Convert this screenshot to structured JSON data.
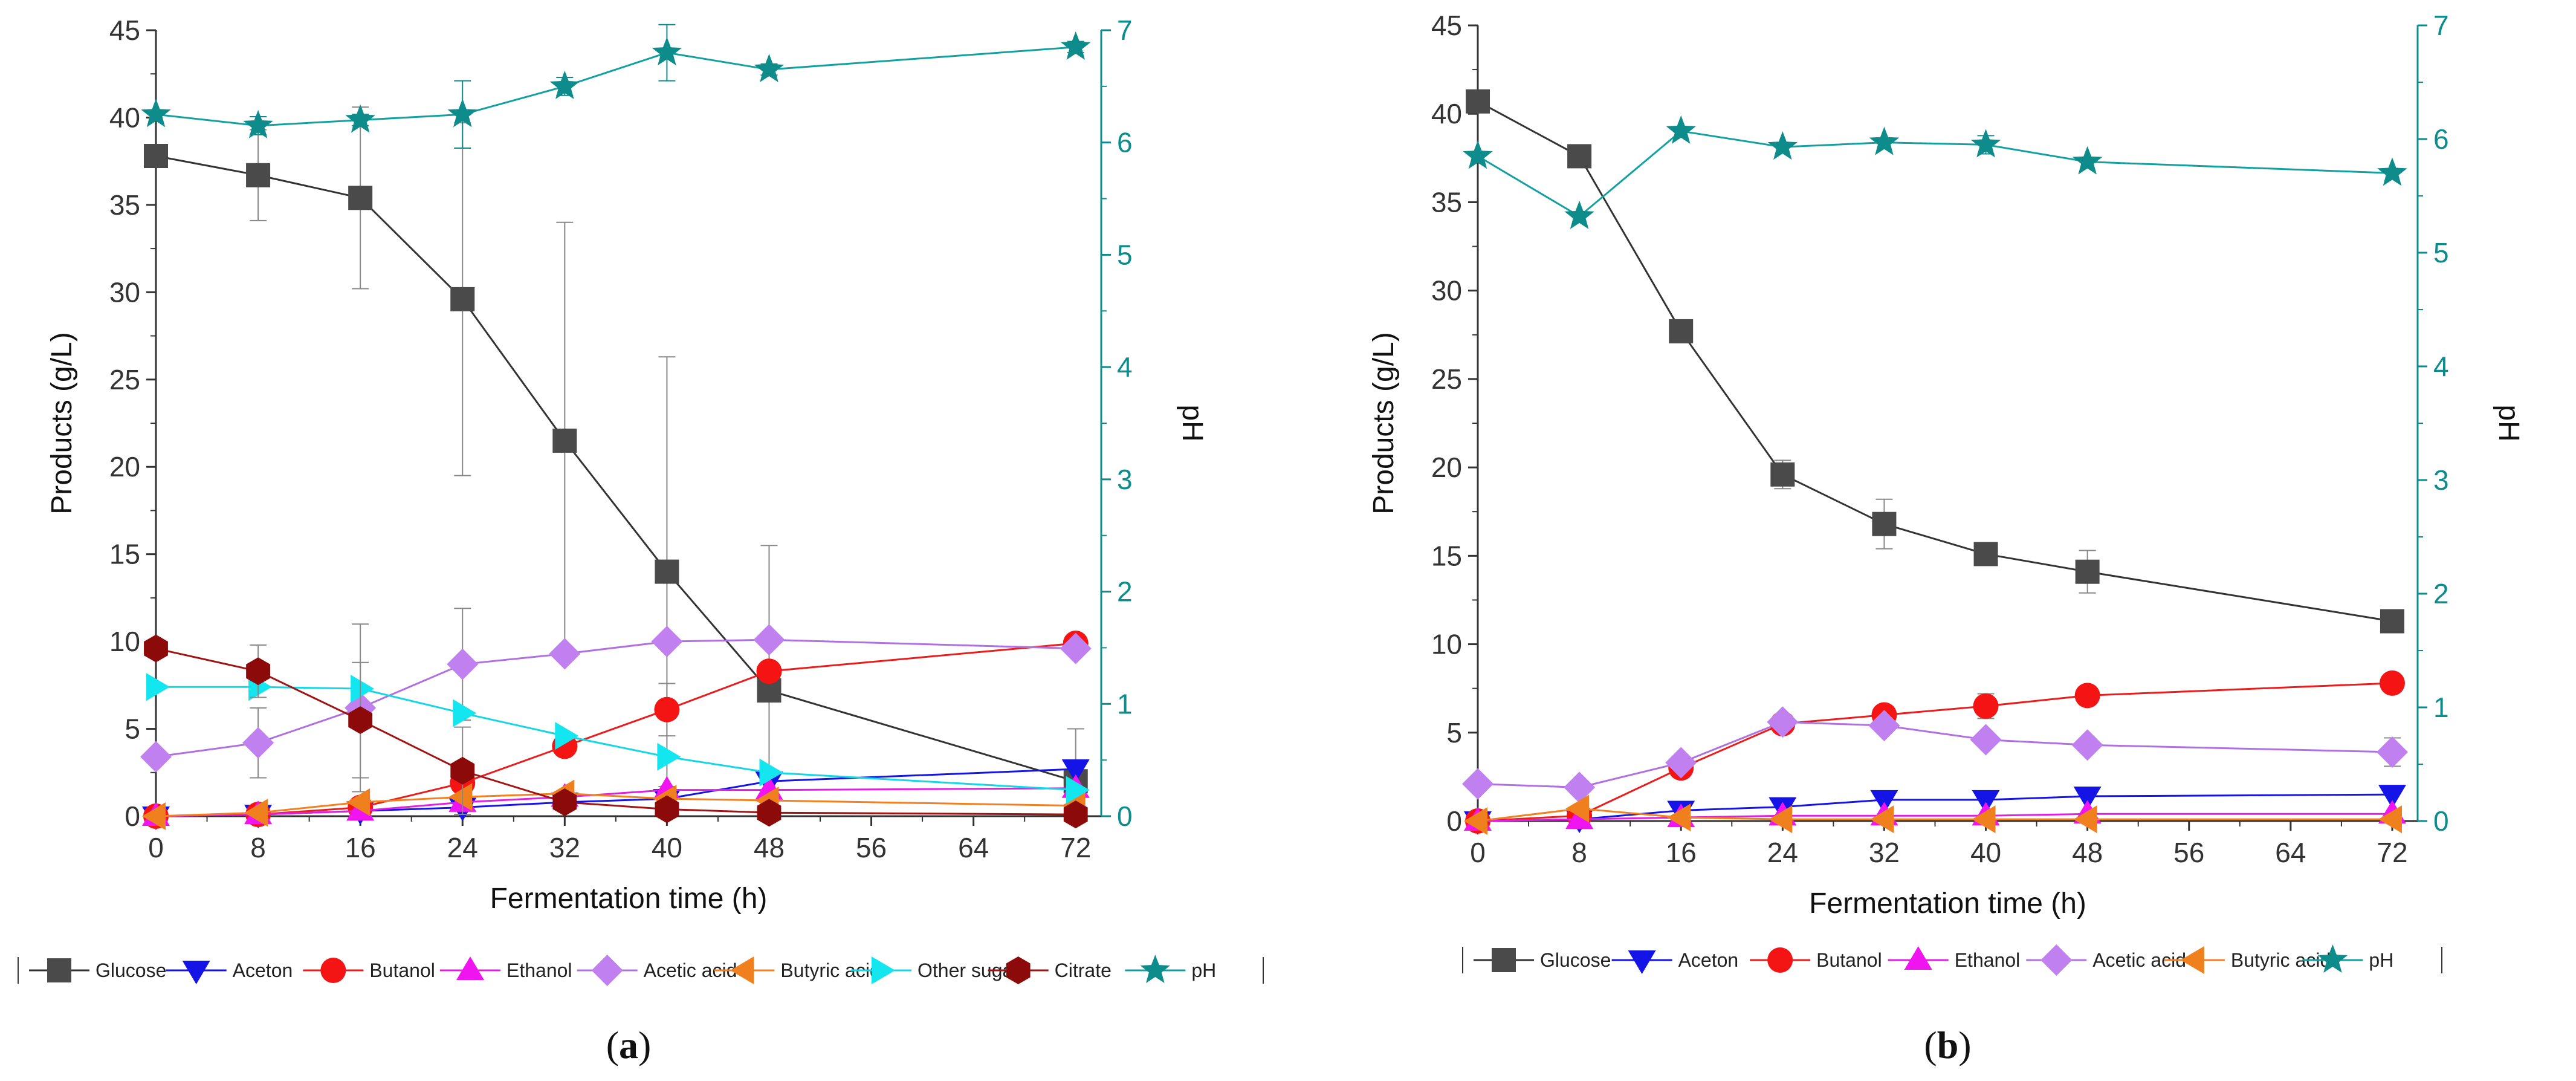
{
  "chart_data": [
    {
      "type": "line",
      "panel_label": "(a)",
      "panel_letter": "a",
      "xlabel": "Fermentation time (h)",
      "ylabel": "Products (g/L)",
      "y2label": "pH",
      "xlim": [
        0,
        74
      ],
      "xticks": [
        0,
        8,
        16,
        24,
        32,
        40,
        48,
        56,
        64,
        72
      ],
      "ylim": [
        0,
        45
      ],
      "yticks": [
        0,
        5,
        10,
        15,
        20,
        25,
        30,
        35,
        40,
        45
      ],
      "y2lim": [
        0,
        7
      ],
      "y2ticks": [
        0,
        1,
        2,
        3,
        4,
        5,
        6,
        7
      ],
      "x": [
        0,
        8,
        16,
        24,
        32,
        40,
        48,
        72
      ],
      "series": [
        {
          "name": "Glucose",
          "marker": "square",
          "color": "#4a4a4a",
          "line_color": "#333333",
          "values": [
            37.8,
            36.7,
            35.4,
            29.6,
            21.5,
            14.0,
            7.2,
            2.0
          ],
          "errors": [
            0,
            2.6,
            5.2,
            10.1,
            12.5,
            12.3,
            8.3,
            3.0
          ]
        },
        {
          "name": "Aceton",
          "marker": "triangle-down",
          "color": "#1414e6",
          "line_color": "#1414e6",
          "values": [
            0.0,
            0.1,
            0.3,
            0.5,
            0.8,
            1.0,
            2.0,
            2.7
          ],
          "errors": [
            0,
            0,
            0,
            0,
            0,
            0,
            0,
            0
          ]
        },
        {
          "name": "Butanol",
          "marker": "circle",
          "color": "#f51414",
          "line_color": "#e81e1e",
          "values": [
            0.0,
            0.1,
            0.5,
            1.9,
            4.0,
            6.1,
            8.3,
            9.9
          ],
          "errors": [
            0,
            0,
            0,
            0,
            0,
            1.5,
            0,
            0
          ]
        },
        {
          "name": "Ethanol",
          "marker": "triangle-up",
          "color": "#f014f0",
          "line_color": "#e020e0",
          "values": [
            0.0,
            0.1,
            0.3,
            0.8,
            1.1,
            1.5,
            1.5,
            1.6
          ],
          "errors": [
            0,
            0,
            0,
            0,
            0,
            0,
            0,
            0
          ]
        },
        {
          "name": "Acetic acid",
          "marker": "diamond",
          "color": "#c080f0",
          "line_color": "#b070e0",
          "values": [
            3.4,
            4.2,
            6.2,
            8.7,
            9.3,
            10.0,
            10.1,
            9.6
          ],
          "errors": [
            0,
            2.0,
            4.8,
            3.2,
            0,
            0,
            0,
            0
          ]
        },
        {
          "name": "Butyric acid",
          "marker": "triangle-left",
          "color": "#f0801e",
          "line_color": "#f08020",
          "values": [
            0.0,
            0.2,
            0.8,
            1.1,
            1.3,
            1.0,
            0.9,
            0.6
          ],
          "errors": [
            0,
            0,
            0,
            0,
            0,
            0,
            0,
            0
          ]
        },
        {
          "name": "Other sugar",
          "marker": "triangle-right",
          "color": "#14e6f0",
          "line_color": "#14d6e6",
          "values": [
            7.4,
            7.4,
            7.3,
            5.9,
            4.6,
            3.4,
            2.5,
            1.5
          ],
          "errors": [
            0,
            0,
            0,
            0,
            0,
            0,
            0,
            0
          ]
        },
        {
          "name": "Citrate",
          "marker": "hexagon",
          "color": "#8c0a0a",
          "line_color": "#a01414",
          "values": [
            9.6,
            8.3,
            5.5,
            2.6,
            0.8,
            0.4,
            0.2,
            0.1
          ],
          "errors": [
            0,
            1.5,
            3.3,
            2.5,
            0,
            0,
            0,
            0
          ]
        },
        {
          "name": "pH",
          "axis": "right",
          "marker": "star",
          "color": "#0e8c8c",
          "line_color": "#14a0a0",
          "values": [
            6.25,
            6.15,
            6.2,
            6.25,
            6.5,
            6.8,
            6.65,
            6.85
          ],
          "errors": [
            0,
            0.08,
            0.05,
            0.3,
            0.08,
            0.25,
            0.05,
            0.05
          ]
        }
      ]
    },
    {
      "type": "line",
      "panel_label": "(b)",
      "panel_letter": "b",
      "xlabel": "Fermentation time (h)",
      "ylabel": "Products (g/L)",
      "y2label": "pH",
      "xlim": [
        0,
        74
      ],
      "xticks": [
        0,
        8,
        16,
        24,
        32,
        40,
        48,
        56,
        64,
        72
      ],
      "ylim": [
        0,
        45
      ],
      "yticks": [
        0,
        5,
        10,
        15,
        20,
        25,
        30,
        35,
        40,
        45
      ],
      "y2lim": [
        0,
        7
      ],
      "y2ticks": [
        0,
        1,
        2,
        3,
        4,
        5,
        6,
        7
      ],
      "x": [
        0,
        8,
        16,
        24,
        32,
        40,
        48,
        72
      ],
      "series": [
        {
          "name": "Glucose",
          "marker": "square",
          "color": "#4a4a4a",
          "line_color": "#333333",
          "values": [
            40.7,
            37.6,
            27.7,
            19.6,
            16.8,
            15.1,
            14.1,
            11.3
          ],
          "errors": [
            0,
            0,
            0,
            0.8,
            1.4,
            0,
            1.2,
            0
          ]
        },
        {
          "name": "Aceton",
          "marker": "triangle-down",
          "color": "#1414e6",
          "line_color": "#1414e6",
          "values": [
            0.0,
            0.1,
            0.6,
            0.8,
            1.2,
            1.2,
            1.4,
            1.5
          ],
          "errors": [
            0,
            0,
            0,
            0,
            0,
            0,
            0,
            0
          ]
        },
        {
          "name": "Butanol",
          "marker": "circle",
          "color": "#f51414",
          "line_color": "#e81e1e",
          "values": [
            0.0,
            0.3,
            3.0,
            5.5,
            6.0,
            6.5,
            7.1,
            7.8
          ],
          "errors": [
            0,
            0,
            0,
            0,
            0,
            0.7,
            0,
            0
          ]
        },
        {
          "name": "Ethanol",
          "marker": "triangle-up",
          "color": "#f014f0",
          "line_color": "#e020e0",
          "values": [
            0.0,
            0.1,
            0.2,
            0.3,
            0.3,
            0.3,
            0.4,
            0.4
          ],
          "errors": [
            0,
            0,
            0,
            0,
            0,
            0,
            0,
            0
          ]
        },
        {
          "name": "Acetic acid",
          "marker": "diamond",
          "color": "#c080f0",
          "line_color": "#b070e0",
          "values": [
            2.1,
            1.9,
            3.3,
            5.6,
            5.4,
            4.6,
            4.3,
            3.9
          ],
          "errors": [
            0,
            0,
            0,
            0,
            0,
            0,
            0,
            0.8
          ]
        },
        {
          "name": "Butyric acid",
          "marker": "triangle-left",
          "color": "#f0801e",
          "line_color": "#f08020",
          "values": [
            0.0,
            0.7,
            0.2,
            0.1,
            0.1,
            0.1,
            0.1,
            0.1
          ],
          "errors": [
            0,
            0,
            0,
            0,
            0,
            0,
            0,
            0
          ]
        },
        {
          "name": "pH",
          "axis": "right",
          "marker": "star",
          "color": "#0e8c8c",
          "line_color": "#14a0a0",
          "values": [
            5.85,
            5.32,
            6.07,
            5.93,
            5.97,
            5.95,
            5.8,
            5.7
          ],
          "errors": [
            0,
            0,
            0,
            0,
            0,
            0.08,
            0,
            0
          ]
        }
      ]
    }
  ]
}
